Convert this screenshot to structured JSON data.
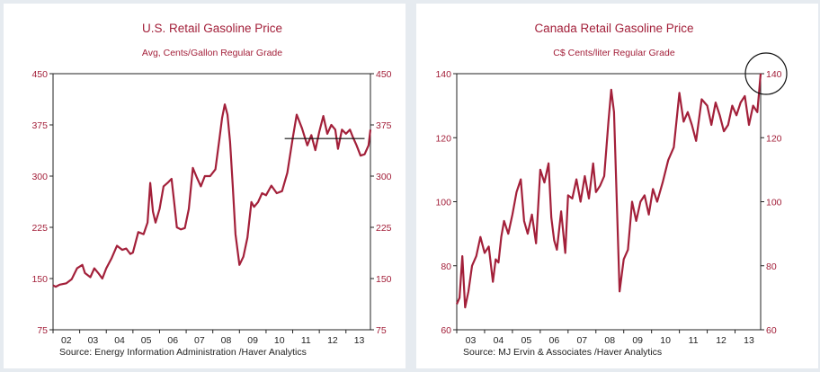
{
  "colors": {
    "series": "#a3203a",
    "axis_text": "#a3203a",
    "background": "#e6ebf0"
  },
  "chart_data": [
    {
      "type": "line",
      "title": "U.S. Retail Gasoline Price",
      "subtitle": "Avg, Cents/Gallon  Regular Grade",
      "source": "Source:  Energy Information Administration /Haver Analytics",
      "ylim": [
        75,
        450
      ],
      "yticks": [
        75,
        150,
        225,
        300,
        375,
        450
      ],
      "xlim": [
        2002.0,
        2013.92
      ],
      "xticks": [
        "02",
        "03",
        "04",
        "05",
        "06",
        "07",
        "08",
        "09",
        "10",
        "11",
        "12",
        "13"
      ],
      "series": [
        {
          "x": [
            2002.0,
            2002.1,
            2002.25,
            2002.5,
            2002.7,
            2002.9,
            2003.1,
            2003.2,
            2003.4,
            2003.55,
            2003.7,
            2003.85,
            2004.0,
            2004.2,
            2004.4,
            2004.6,
            2004.75,
            2004.9,
            2005.0,
            2005.2,
            2005.4,
            2005.55,
            2005.65,
            2005.75,
            2005.85,
            2006.0,
            2006.15,
            2006.3,
            2006.45,
            2006.55,
            2006.65,
            2006.8,
            2006.95,
            2007.1,
            2007.25,
            2007.4,
            2007.55,
            2007.7,
            2007.9,
            2008.1,
            2008.25,
            2008.35,
            2008.45,
            2008.55,
            2008.65,
            2008.75,
            2008.85,
            2009.0,
            2009.15,
            2009.3,
            2009.45,
            2009.55,
            2009.7,
            2009.85,
            2010.0,
            2010.2,
            2010.4,
            2010.6,
            2010.8,
            2011.0,
            2011.15,
            2011.35,
            2011.55,
            2011.7,
            2011.85,
            2012.0,
            2012.15,
            2012.3,
            2012.45,
            2012.6,
            2012.7,
            2012.85,
            2013.0,
            2013.15,
            2013.25,
            2013.4,
            2013.55,
            2013.7,
            2013.85,
            2013.92
          ],
          "y": [
            140,
            138,
            141,
            143,
            149,
            165,
            170,
            158,
            152,
            165,
            158,
            150,
            165,
            180,
            198,
            192,
            194,
            186,
            188,
            218,
            215,
            232,
            290,
            248,
            232,
            252,
            285,
            290,
            296,
            262,
            225,
            222,
            224,
            252,
            312,
            298,
            285,
            300,
            300,
            310,
            355,
            385,
            405,
            390,
            350,
            285,
            215,
            170,
            182,
            210,
            262,
            255,
            262,
            275,
            272,
            286,
            275,
            278,
            305,
            355,
            390,
            370,
            345,
            360,
            338,
            365,
            388,
            362,
            375,
            368,
            340,
            368,
            362,
            368,
            358,
            345,
            330,
            332,
            345,
            368
          ]
        }
      ],
      "annotations": [
        {
          "type": "horizontal-line",
          "y": 355,
          "x_from": 2010.7,
          "x_to": 2013.7
        }
      ]
    },
    {
      "type": "line",
      "title": "Canada Retail Gasoline Price",
      "subtitle": "C$ Cents/liter   Regular Grade",
      "source": "Source:  MJ Ervin & Associates /Haver Analytics",
      "ylim": [
        60,
        140
      ],
      "yticks": [
        60,
        80,
        100,
        120,
        140
      ],
      "xlim": [
        2003.0,
        2013.92
      ],
      "xticks": [
        "03",
        "04",
        "05",
        "06",
        "07",
        "08",
        "09",
        "10",
        "11",
        "12",
        "13"
      ],
      "series": [
        {
          "x": [
            2003.0,
            2003.1,
            2003.2,
            2003.3,
            2003.42,
            2003.55,
            2003.7,
            2003.85,
            2004.0,
            2004.15,
            2004.3,
            2004.4,
            2004.5,
            2004.6,
            2004.7,
            2004.85,
            2005.0,
            2005.15,
            2005.3,
            2005.42,
            2005.55,
            2005.7,
            2005.85,
            2006.0,
            2006.15,
            2006.3,
            2006.4,
            2006.5,
            2006.6,
            2006.75,
            2006.9,
            2007.0,
            2007.15,
            2007.3,
            2007.45,
            2007.6,
            2007.75,
            2007.9,
            2008.0,
            2008.15,
            2008.3,
            2008.45,
            2008.55,
            2008.65,
            2008.75,
            2008.85,
            2009.0,
            2009.15,
            2009.3,
            2009.45,
            2009.6,
            2009.75,
            2009.9,
            2010.05,
            2010.2,
            2010.4,
            2010.6,
            2010.8,
            2011.0,
            2011.15,
            2011.3,
            2011.45,
            2011.6,
            2011.8,
            2012.0,
            2012.15,
            2012.3,
            2012.45,
            2012.6,
            2012.75,
            2012.9,
            2013.05,
            2013.2,
            2013.35,
            2013.5,
            2013.65,
            2013.8,
            2013.92
          ],
          "y": [
            68,
            70,
            83,
            67,
            72,
            80,
            83,
            89,
            84,
            86,
            75,
            82,
            81,
            89,
            94,
            90,
            96,
            103,
            107,
            94,
            90,
            96,
            87,
            110,
            106,
            112,
            95,
            88,
            85,
            97,
            84,
            102,
            101,
            107,
            100,
            108,
            101,
            112,
            103,
            105,
            108,
            125,
            135,
            128,
            100,
            72,
            82,
            85,
            100,
            94,
            100,
            102,
            96,
            104,
            100,
            106,
            113,
            117,
            134,
            125,
            128,
            124,
            119,
            132,
            130,
            124,
            131,
            127,
            122,
            124,
            130,
            127,
            131,
            133,
            124,
            130,
            128,
            140
          ]
        }
      ],
      "annotations": [
        {
          "type": "circle",
          "x": 2013.92,
          "y": 140
        }
      ]
    }
  ]
}
